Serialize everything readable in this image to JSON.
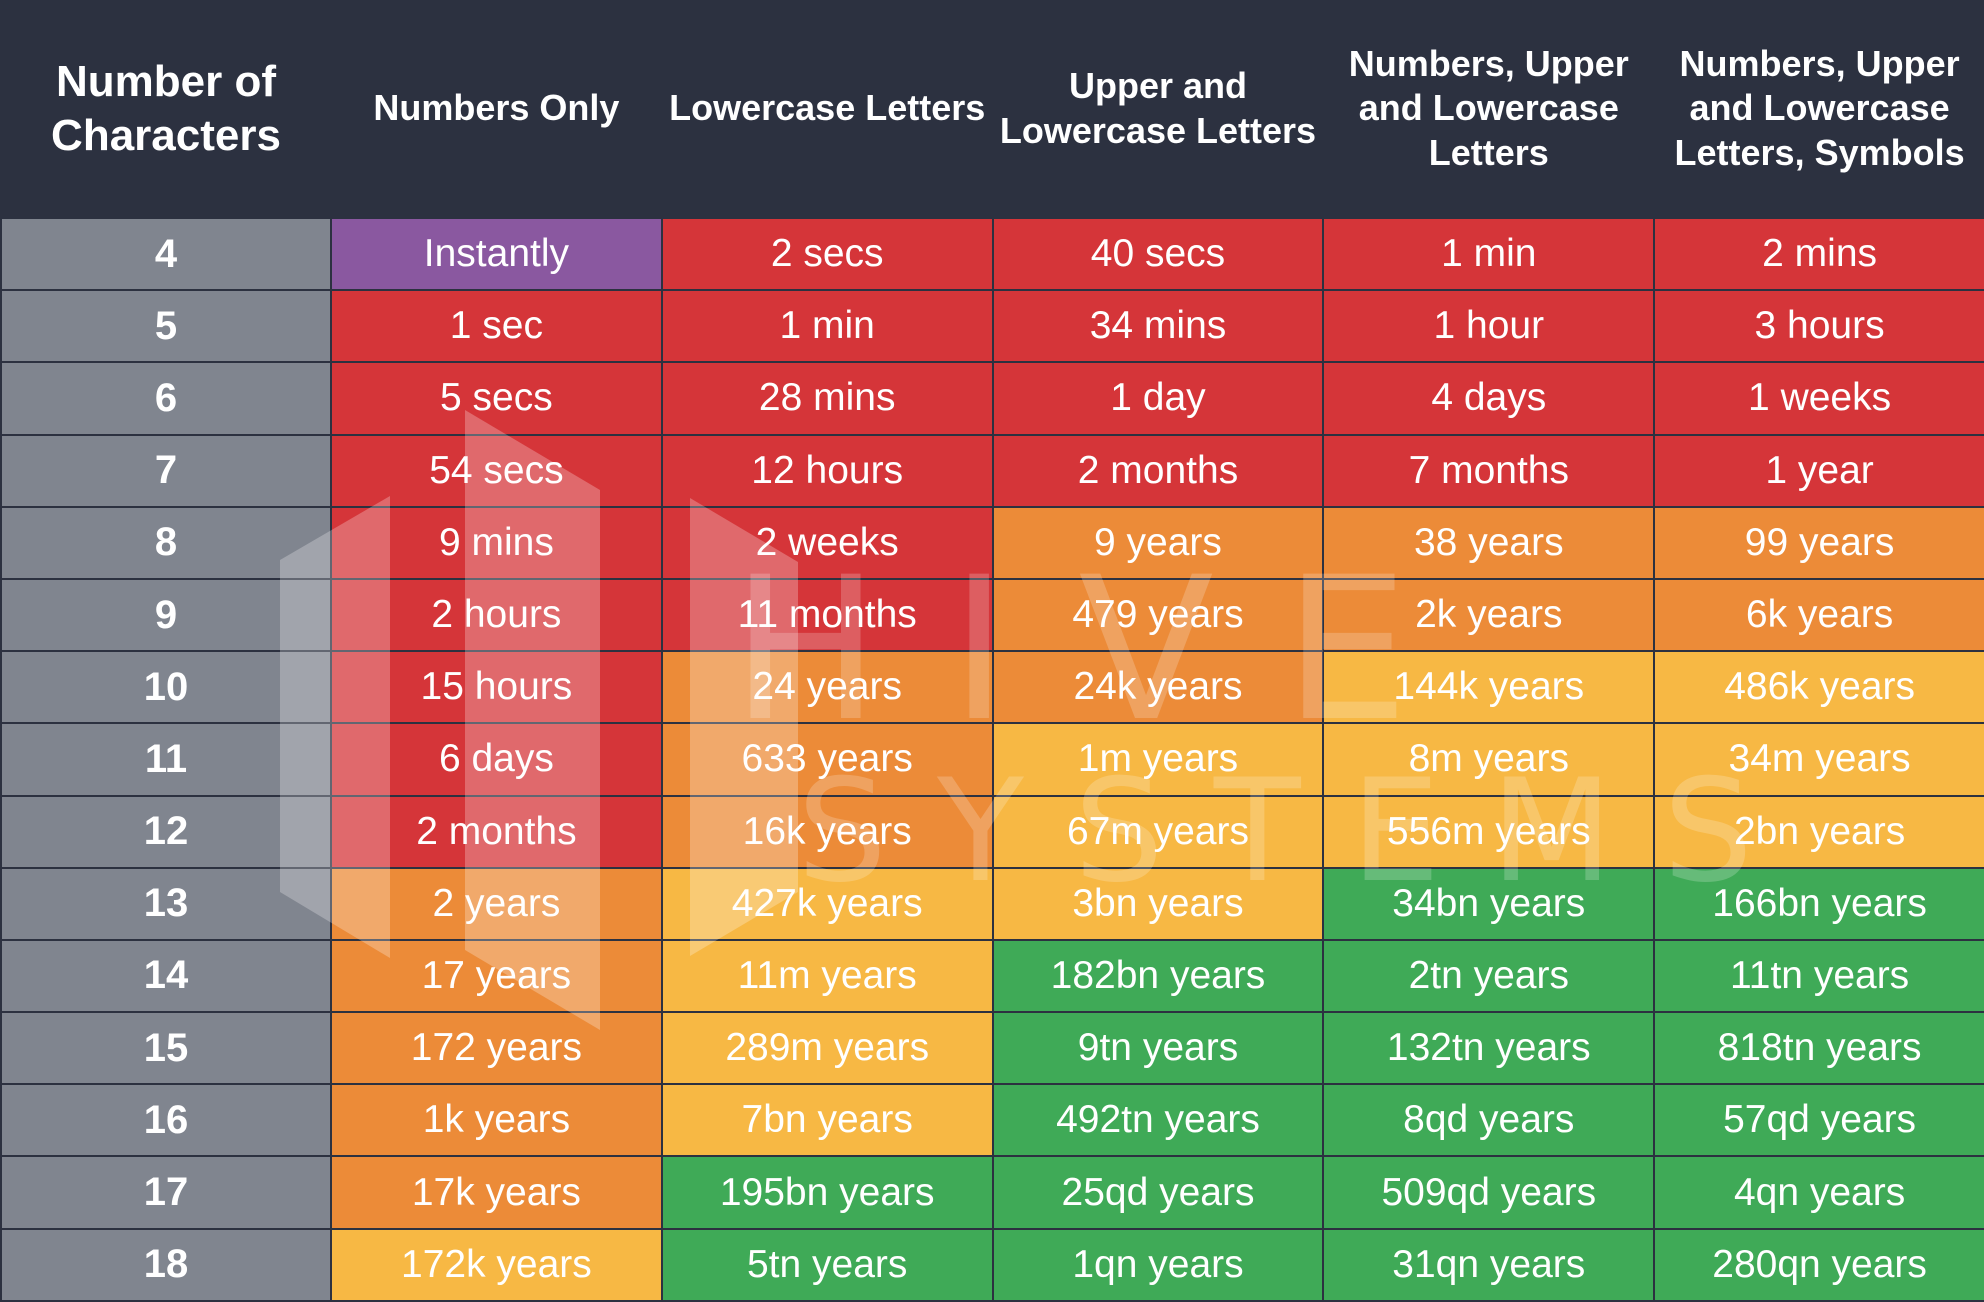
{
  "chart_data": {
    "type": "table",
    "columns": [
      "Number of Characters",
      "Numbers Only",
      "Lowercase Letters",
      "Upper and Lowercase Letters",
      "Numbers, Upper and Lowercase Letters",
      "Numbers, Upper and Lowercase Letters, Symbols"
    ],
    "colors": {
      "purple": "#8a58a0",
      "red": "#d53539",
      "orange": "#ec8b38",
      "yellow": "#f7b844",
      "green": "#3faa57",
      "row_label": "#80858f",
      "header": "#2c3140"
    },
    "rows": [
      {
        "n": "4",
        "cells": [
          [
            "Instantly",
            "purple"
          ],
          [
            "2 secs",
            "red"
          ],
          [
            "40 secs",
            "red"
          ],
          [
            "1 min",
            "red"
          ],
          [
            "2 mins",
            "red"
          ]
        ]
      },
      {
        "n": "5",
        "cells": [
          [
            "1 sec",
            "red"
          ],
          [
            "1 min",
            "red"
          ],
          [
            "34 mins",
            "red"
          ],
          [
            "1 hour",
            "red"
          ],
          [
            "3 hours",
            "red"
          ]
        ]
      },
      {
        "n": "6",
        "cells": [
          [
            "5 secs",
            "red"
          ],
          [
            "28 mins",
            "red"
          ],
          [
            "1 day",
            "red"
          ],
          [
            "4 days",
            "red"
          ],
          [
            "1 weeks",
            "red"
          ]
        ]
      },
      {
        "n": "7",
        "cells": [
          [
            "54 secs",
            "red"
          ],
          [
            "12 hours",
            "red"
          ],
          [
            "2 months",
            "red"
          ],
          [
            "7 months",
            "red"
          ],
          [
            "1 year",
            "red"
          ]
        ]
      },
      {
        "n": "8",
        "cells": [
          [
            "9 mins",
            "red"
          ],
          [
            "2 weeks",
            "red"
          ],
          [
            "9 years",
            "orange"
          ],
          [
            "38 years",
            "orange"
          ],
          [
            "99 years",
            "orange"
          ]
        ]
      },
      {
        "n": "9",
        "cells": [
          [
            "2 hours",
            "red"
          ],
          [
            "11 months",
            "red"
          ],
          [
            "479 years",
            "orange"
          ],
          [
            "2k years",
            "orange"
          ],
          [
            "6k years",
            "orange"
          ]
        ]
      },
      {
        "n": "10",
        "cells": [
          [
            "15 hours",
            "red"
          ],
          [
            "24 years",
            "orange"
          ],
          [
            "24k years",
            "orange"
          ],
          [
            "144k years",
            "yellow"
          ],
          [
            "486k years",
            "yellow"
          ]
        ]
      },
      {
        "n": "11",
        "cells": [
          [
            "6 days",
            "red"
          ],
          [
            "633 years",
            "orange"
          ],
          [
            "1m years",
            "yellow"
          ],
          [
            "8m years",
            "yellow"
          ],
          [
            "34m years",
            "yellow"
          ]
        ]
      },
      {
        "n": "12",
        "cells": [
          [
            "2 months",
            "red"
          ],
          [
            "16k years",
            "orange"
          ],
          [
            "67m years",
            "yellow"
          ],
          [
            "556m years",
            "yellow"
          ],
          [
            "2bn years",
            "yellow"
          ]
        ]
      },
      {
        "n": "13",
        "cells": [
          [
            "2 years",
            "orange"
          ],
          [
            "427k years",
            "yellow"
          ],
          [
            "3bn years",
            "yellow"
          ],
          [
            "34bn years",
            "green"
          ],
          [
            "166bn years",
            "green"
          ]
        ]
      },
      {
        "n": "14",
        "cells": [
          [
            "17 years",
            "orange"
          ],
          [
            "11m years",
            "yellow"
          ],
          [
            "182bn years",
            "green"
          ],
          [
            "2tn years",
            "green"
          ],
          [
            "11tn years",
            "green"
          ]
        ]
      },
      {
        "n": "15",
        "cells": [
          [
            "172 years",
            "orange"
          ],
          [
            "289m years",
            "yellow"
          ],
          [
            "9tn years",
            "green"
          ],
          [
            "132tn years",
            "green"
          ],
          [
            "818tn years",
            "green"
          ]
        ]
      },
      {
        "n": "16",
        "cells": [
          [
            "1k years",
            "orange"
          ],
          [
            "7bn years",
            "yellow"
          ],
          [
            "492tn years",
            "green"
          ],
          [
            "8qd years",
            "green"
          ],
          [
            "57qd years",
            "green"
          ]
        ]
      },
      {
        "n": "17",
        "cells": [
          [
            "17k years",
            "orange"
          ],
          [
            "195bn years",
            "green"
          ],
          [
            "25qd years",
            "green"
          ],
          [
            "509qd years",
            "green"
          ],
          [
            "4qn years",
            "green"
          ]
        ]
      },
      {
        "n": "18",
        "cells": [
          [
            "172k years",
            "yellow"
          ],
          [
            "5tn years",
            "green"
          ],
          [
            "1qn years",
            "green"
          ],
          [
            "31qn years",
            "green"
          ],
          [
            "280qn years",
            "green"
          ]
        ]
      }
    ]
  },
  "watermark": {
    "line1": "HIVE",
    "line2": "SYSTEMS"
  }
}
